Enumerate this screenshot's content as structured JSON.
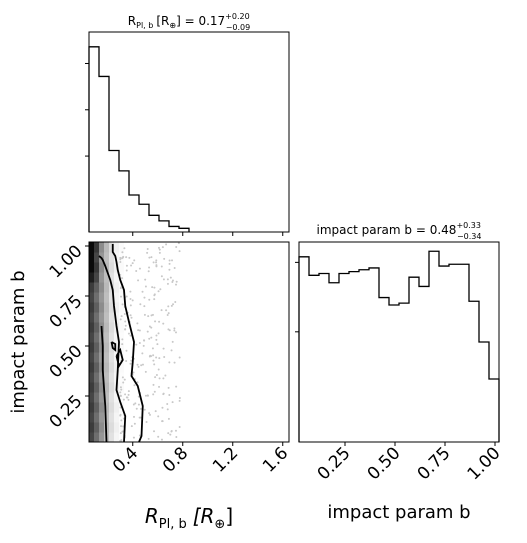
{
  "chart_data": [
    {
      "panel": "top-left",
      "type": "histogram",
      "title": "R_{Pl,b} [R_⊕] = 0.17 (+0.20 / −0.09)",
      "title_parts": {
        "main": "R",
        "sub": "Pl, b",
        "bracket": "[R",
        "earth": "⊕",
        "rest": "] = 0.17",
        "sup": "+0.20",
        "low": "−0.09"
      },
      "xlim": [
        0.05,
        1.65
      ],
      "bin_edges": [
        0.05,
        0.13,
        0.21,
        0.29,
        0.37,
        0.45,
        0.53,
        0.61,
        0.69,
        0.77,
        0.85
      ],
      "counts": [
        100,
        84,
        44,
        33,
        20,
        15,
        9,
        6,
        3,
        2
      ],
      "ylim": [
        0,
        108
      ]
    },
    {
      "panel": "bottom-left",
      "type": "contour-2d",
      "xlabel_parts": {
        "main": "R",
        "sub": "Pl, b",
        "rest": "[R",
        "earth": "⊕",
        "end": "]"
      },
      "ylabel": "impact param b",
      "xlim": [
        0.05,
        1.65
      ],
      "ylim": [
        0.02,
        1.02
      ],
      "xticks": [
        "0.4",
        "0.8",
        "1.2",
        "1.6"
      ],
      "xtick_values": [
        0.4,
        0.8,
        1.2,
        1.6
      ],
      "yticks": [
        "0.25",
        "0.50",
        "0.75",
        "1.00"
      ],
      "ytick_values": [
        0.25,
        0.5,
        0.75,
        1.0
      ],
      "levels": [
        {
          "level": "outer",
          "x": [
            0.45,
            0.47,
            0.48,
            0.44,
            0.39,
            0.4,
            0.41,
            0.37,
            0.34,
            0.33,
            0.3,
            0.28,
            0.27,
            0.26,
            0.24,
            0.24
          ],
          "y": [
            0.02,
            0.05,
            0.2,
            0.3,
            0.35,
            0.42,
            0.52,
            0.62,
            0.7,
            0.78,
            0.83,
            0.88,
            0.92,
            0.95,
            0.97,
            1.01
          ]
        },
        {
          "level": "middle",
          "x": [
            0.33,
            0.34,
            0.3,
            0.27,
            0.28,
            0.29,
            0.27,
            0.25,
            0.24,
            0.22,
            0.18,
            0.16,
            0.15,
            0.13
          ],
          "y": [
            0.02,
            0.15,
            0.22,
            0.28,
            0.38,
            0.52,
            0.6,
            0.7,
            0.78,
            0.83,
            0.9,
            0.93,
            0.94,
            0.95
          ]
        },
        {
          "level": "inner",
          "x": [
            0.19,
            0.18,
            0.16,
            0.16,
            0.15
          ],
          "y": [
            0.02,
            0.2,
            0.38,
            0.5,
            0.6
          ]
        },
        {
          "level": "island-1",
          "x": [
            0.27,
            0.3,
            0.32,
            0.29,
            0.27
          ],
          "y": [
            0.45,
            0.48,
            0.43,
            0.4,
            0.45
          ]
        },
        {
          "level": "island-2",
          "x": [
            0.23,
            0.26,
            0.26,
            0.24,
            0.23
          ],
          "y": [
            0.52,
            0.51,
            0.48,
            0.49,
            0.52
          ]
        }
      ]
    },
    {
      "panel": "bottom-right",
      "type": "histogram",
      "title": "impact param b = 0.48 (+0.33 / −0.34)",
      "title_parts": {
        "main": "impact param b = 0.48",
        "sup": "+0.33",
        "low": "−0.34"
      },
      "xlabel": "impact param b",
      "xlim": [
        0.02,
        1.02
      ],
      "xticks": [
        "0.25",
        "0.50",
        "0.75",
        "1.00"
      ],
      "xtick_values": [
        0.25,
        0.5,
        0.75,
        1.0
      ],
      "bin_edges": [
        0.02,
        0.07,
        0.12,
        0.17,
        0.22,
        0.27,
        0.32,
        0.37,
        0.42,
        0.47,
        0.52,
        0.57,
        0.62,
        0.67,
        0.72,
        0.77,
        0.82,
        0.87,
        0.92,
        0.97,
        1.02
      ],
      "counts": [
        100,
        90,
        91,
        86,
        91,
        92,
        93,
        94,
        78,
        74,
        75,
        89,
        84,
        103,
        95,
        96,
        96,
        76,
        54,
        34
      ],
      "ylim": [
        0,
        108
      ]
    }
  ]
}
